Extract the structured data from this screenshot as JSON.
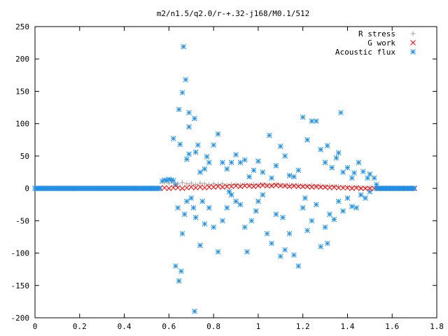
{
  "chart_data": {
    "type": "scatter",
    "title": "m2/n1.5/q2.0/r-+.32-j168/M0.1/512",
    "xlim": [
      0,
      1.8
    ],
    "ylim": [
      -200,
      250
    ],
    "x_ticks": [
      "0",
      "0.2",
      "0.4",
      "0.6",
      "0.8",
      "1",
      "1.2",
      "1.4",
      "1.6",
      "1.8"
    ],
    "y_ticks": [
      "250",
      "200",
      "150",
      "100",
      "50",
      "0",
      "-50",
      "-100",
      "-150",
      "-200"
    ],
    "grid": false,
    "legend_position": "top-right",
    "series": [
      {
        "name": "R stress",
        "marker": "plus",
        "color": "#a0a0a0",
        "points": [
          [
            0.58,
            9
          ],
          [
            0.6,
            8
          ],
          [
            0.62,
            8
          ],
          [
            0.64,
            7
          ],
          [
            0.66,
            9
          ],
          [
            0.68,
            7
          ],
          [
            0.7,
            8
          ],
          [
            0.72,
            6
          ],
          [
            0.74,
            8
          ],
          [
            0.76,
            7
          ],
          [
            0.78,
            6
          ],
          [
            0.8,
            7
          ],
          [
            0.82,
            6
          ],
          [
            0.84,
            7
          ],
          [
            0.86,
            5
          ],
          [
            0.88,
            6
          ],
          [
            0.9,
            6
          ],
          [
            0.92,
            5
          ],
          [
            0.94,
            6
          ],
          [
            0.96,
            5
          ],
          [
            0.98,
            6
          ],
          [
            1.0,
            5
          ],
          [
            1.02,
            6
          ],
          [
            1.04,
            5
          ],
          [
            1.06,
            5
          ],
          [
            1.08,
            6
          ],
          [
            1.1,
            5
          ],
          [
            1.12,
            4
          ],
          [
            1.14,
            5
          ],
          [
            1.16,
            4
          ],
          [
            1.18,
            5
          ],
          [
            1.2,
            4
          ],
          [
            1.22,
            4
          ],
          [
            1.24,
            5
          ],
          [
            1.26,
            3
          ],
          [
            1.28,
            4
          ],
          [
            1.3,
            3
          ],
          [
            1.32,
            4
          ],
          [
            1.34,
            3
          ],
          [
            1.36,
            3
          ],
          [
            1.38,
            2
          ],
          [
            1.4,
            2
          ],
          [
            1.42,
            2
          ],
          [
            1.44,
            2
          ],
          [
            1.46,
            1
          ],
          [
            1.48,
            1
          ],
          [
            1.5,
            1
          ]
        ]
      },
      {
        "name": "G work",
        "marker": "cross",
        "color": "#ff0000",
        "points": [
          [
            0.56,
            0
          ],
          [
            0.58,
            1
          ],
          [
            0.6,
            0
          ],
          [
            0.62,
            1
          ],
          [
            0.64,
            1
          ],
          [
            0.66,
            0
          ],
          [
            0.68,
            1
          ],
          [
            0.7,
            2
          ],
          [
            0.72,
            1
          ],
          [
            0.74,
            2
          ],
          [
            0.76,
            1
          ],
          [
            0.78,
            2
          ],
          [
            0.8,
            2
          ],
          [
            0.82,
            3
          ],
          [
            0.84,
            2
          ],
          [
            0.86,
            3
          ],
          [
            0.88,
            3
          ],
          [
            0.9,
            4
          ],
          [
            0.92,
            3
          ],
          [
            0.94,
            4
          ],
          [
            0.96,
            4
          ],
          [
            0.98,
            3
          ],
          [
            1.0,
            4
          ],
          [
            1.02,
            5
          ],
          [
            1.04,
            4
          ],
          [
            1.06,
            4
          ],
          [
            1.08,
            5
          ],
          [
            1.1,
            4
          ],
          [
            1.12,
            4
          ],
          [
            1.14,
            3
          ],
          [
            1.16,
            4
          ],
          [
            1.18,
            3
          ],
          [
            1.2,
            3
          ],
          [
            1.22,
            3
          ],
          [
            1.24,
            2
          ],
          [
            1.26,
            3
          ],
          [
            1.28,
            2
          ],
          [
            1.3,
            2
          ],
          [
            1.32,
            1
          ],
          [
            1.34,
            2
          ],
          [
            1.36,
            1
          ],
          [
            1.38,
            1
          ],
          [
            1.4,
            1
          ],
          [
            1.42,
            0
          ],
          [
            1.44,
            1
          ],
          [
            1.46,
            0
          ],
          [
            1.48,
            0
          ],
          [
            1.5,
            0
          ],
          [
            1.52,
            0
          ],
          [
            1.54,
            0
          ],
          [
            1.56,
            0
          ],
          [
            1.58,
            0
          ],
          [
            1.6,
            0
          ],
          [
            1.62,
            0
          ],
          [
            1.64,
            0
          ],
          [
            1.66,
            0
          ],
          [
            1.68,
            0
          ],
          [
            1.7,
            0
          ]
        ]
      },
      {
        "name": "Acoustic flux",
        "marker": "star",
        "color": "#1e90e6",
        "points": [
          [
            0.665,
            219
          ],
          [
            0.675,
            168
          ],
          [
            0.66,
            148
          ],
          [
            0.645,
            122
          ],
          [
            0.69,
            117
          ],
          [
            0.715,
            108
          ],
          [
            0.62,
            77
          ],
          [
            0.73,
            67
          ],
          [
            0.65,
            68
          ],
          [
            0.69,
            95
          ],
          [
            0.72,
            56
          ],
          [
            0.69,
            53
          ],
          [
            0.68,
            45
          ],
          [
            0.77,
            49
          ],
          [
            0.76,
            30
          ],
          [
            0.74,
            25
          ],
          [
            0.78,
            40
          ],
          [
            0.82,
            84
          ],
          [
            0.8,
            67
          ],
          [
            0.84,
            40
          ],
          [
            0.86,
            30
          ],
          [
            0.88,
            40
          ],
          [
            0.9,
            52
          ],
          [
            0.92,
            40
          ],
          [
            0.94,
            44
          ],
          [
            0.96,
            18
          ],
          [
            0.98,
            28
          ],
          [
            1.0,
            42
          ],
          [
            1.02,
            25
          ],
          [
            1.05,
            82
          ],
          [
            1.06,
            16
          ],
          [
            1.08,
            35
          ],
          [
            1.1,
            65
          ],
          [
            1.12,
            50
          ],
          [
            1.14,
            20
          ],
          [
            1.16,
            18
          ],
          [
            1.18,
            28
          ],
          [
            1.2,
            110
          ],
          [
            1.22,
            75
          ],
          [
            1.24,
            104
          ],
          [
            1.26,
            104
          ],
          [
            1.28,
            60
          ],
          [
            1.3,
            40
          ],
          [
            1.31,
            66
          ],
          [
            1.33,
            32
          ],
          [
            1.35,
            47
          ],
          [
            1.36,
            55
          ],
          [
            1.37,
            117
          ],
          [
            1.38,
            25
          ],
          [
            1.4,
            32
          ],
          [
            1.42,
            16
          ],
          [
            1.43,
            24
          ],
          [
            1.45,
            40
          ],
          [
            1.47,
            26
          ],
          [
            1.49,
            16
          ],
          [
            1.5,
            22
          ],
          [
            1.52,
            16
          ],
          [
            1.53,
            6
          ],
          [
            0.57,
            11
          ],
          [
            0.58,
            13
          ],
          [
            0.59,
            12
          ],
          [
            0.6,
            14
          ],
          [
            0.61,
            13
          ],
          [
            0.62,
            12
          ],
          [
            0.63,
            6
          ],
          [
            0.63,
            -120
          ],
          [
            0.645,
            -143
          ],
          [
            0.655,
            -128
          ],
          [
            0.715,
            -190
          ],
          [
            0.66,
            -70
          ],
          [
            0.64,
            -30
          ],
          [
            0.67,
            -40
          ],
          [
            0.68,
            -20
          ],
          [
            0.7,
            -15
          ],
          [
            0.72,
            -45
          ],
          [
            0.74,
            -88
          ],
          [
            0.76,
            -55
          ],
          [
            0.78,
            -30
          ],
          [
            0.8,
            -60
          ],
          [
            0.82,
            -98
          ],
          [
            0.84,
            -50
          ],
          [
            0.86,
            -30
          ],
          [
            0.88,
            -10
          ],
          [
            0.9,
            -20
          ],
          [
            0.92,
            -25
          ],
          [
            0.94,
            -60
          ],
          [
            0.95,
            -98
          ],
          [
            0.97,
            -50
          ],
          [
            0.99,
            -35
          ],
          [
            1.0,
            -20
          ],
          [
            1.02,
            -10
          ],
          [
            1.04,
            -70
          ],
          [
            1.06,
            -85
          ],
          [
            1.08,
            -40
          ],
          [
            1.1,
            -105
          ],
          [
            1.12,
            -95
          ],
          [
            1.14,
            -70
          ],
          [
            1.16,
            -103
          ],
          [
            1.18,
            -120
          ],
          [
            1.2,
            -30
          ],
          [
            1.22,
            -65
          ],
          [
            1.24,
            -50
          ],
          [
            1.26,
            -25
          ],
          [
            1.28,
            -90
          ],
          [
            1.3,
            -60
          ],
          [
            1.31,
            -85
          ],
          [
            1.32,
            -40
          ],
          [
            1.34,
            -48
          ],
          [
            1.36,
            -20
          ],
          [
            1.38,
            -35
          ],
          [
            1.4,
            -15
          ],
          [
            1.42,
            -28
          ],
          [
            1.44,
            -30
          ],
          [
            1.46,
            -10
          ],
          [
            1.48,
            -15
          ],
          [
            1.5,
            -5
          ],
          [
            0.71,
            -30
          ],
          [
            0.75,
            -20
          ],
          [
            0.87,
            -5
          ],
          [
            1.11,
            -45
          ],
          [
            1.21,
            -15
          ]
        ]
      }
    ]
  }
}
